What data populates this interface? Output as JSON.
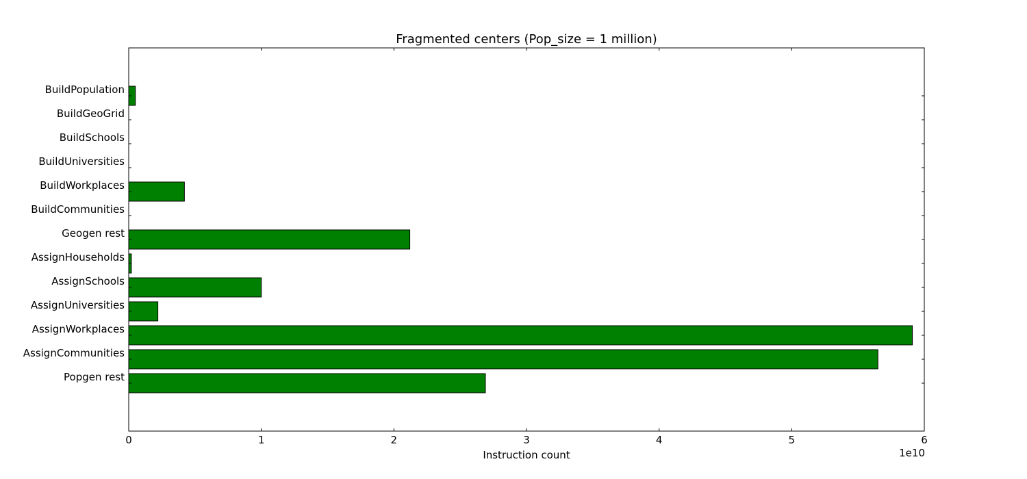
{
  "chart_data": {
    "type": "bar",
    "orientation": "horizontal",
    "title": "Fragmented centers (Pop_size = 1 million)",
    "xlabel": "Instruction count",
    "ylabel": "",
    "x_scale_label": "1e10",
    "x_scale_factor": 10000000000,
    "xlim": [
      0,
      6
    ],
    "xticks": [
      "0",
      "1",
      "2",
      "3",
      "4",
      "5",
      "6"
    ],
    "bar_color": "#008000",
    "edge_color": "#000000",
    "grid": false,
    "legend": "none",
    "categories": [
      "BuildPopulation",
      "BuildGeoGrid",
      "BuildSchools",
      "BuildUniversities",
      "BuildWorkplaces",
      "BuildCommunities",
      "Geogen rest",
      "AssignHouseholds",
      "AssignSchools",
      "AssignUniversities",
      "AssignWorkplaces",
      "AssignCommunities",
      "Popgen rest"
    ],
    "values": [
      0.05,
      0.0,
      0.0,
      0.0,
      0.42,
      0.0,
      2.12,
      0.02,
      1.0,
      0.22,
      5.91,
      5.65,
      2.69
    ]
  }
}
